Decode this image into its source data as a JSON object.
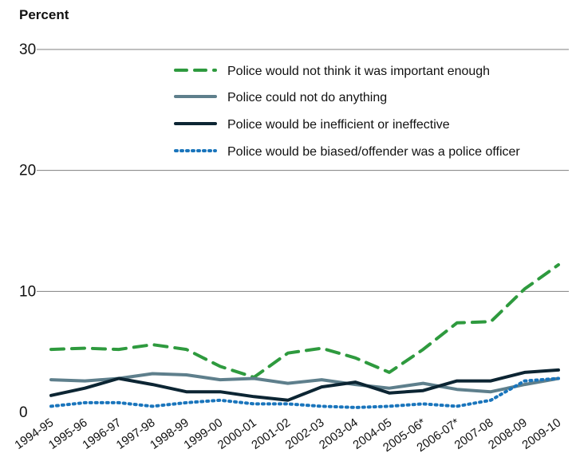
{
  "chart_data": {
    "type": "line",
    "ylabel": "Percent",
    "ylim": [
      0,
      30
    ],
    "yticks": [
      0,
      10,
      20,
      30
    ],
    "grid": "horizontal",
    "legend_position": "top-right",
    "categories": [
      "1994-95",
      "1995-96",
      "1996-97",
      "1997-98",
      "1998-99",
      "1999-00",
      "2000-01",
      "2001-02",
      "2002-03",
      "2003-04",
      "2004-05",
      "2005-06*",
      "2006-07*",
      "2007-08",
      "2008-09",
      "2009-10"
    ],
    "series": [
      {
        "name": "Police would not think it was important enough",
        "color": "#2e9a3e",
        "style": "dashed",
        "values": [
          5.2,
          5.3,
          5.2,
          5.6,
          5.2,
          3.8,
          2.9,
          4.9,
          5.3,
          4.5,
          3.3,
          5.2,
          7.4,
          7.5,
          10.2,
          12.2
        ]
      },
      {
        "name": "Police could not do anything",
        "color": "#5e7f8c",
        "style": "solid",
        "values": [
          2.7,
          2.6,
          2.8,
          3.2,
          3.1,
          2.7,
          2.8,
          2.4,
          2.7,
          2.3,
          2.0,
          2.4,
          1.9,
          1.7,
          2.3,
          2.8
        ]
      },
      {
        "name": "Police would be inefficient or ineffective",
        "color": "#0c2533",
        "style": "solid",
        "values": [
          1.4,
          2.0,
          2.8,
          2.3,
          1.7,
          1.7,
          1.3,
          1.0,
          2.1,
          2.5,
          1.6,
          1.8,
          2.6,
          2.6,
          3.3,
          3.5
        ]
      },
      {
        "name": "Police would be biased/offender was a police officer",
        "color": "#1a75bc",
        "style": "dotted",
        "values": [
          0.5,
          0.8,
          0.8,
          0.5,
          0.8,
          1.0,
          0.7,
          0.7,
          0.5,
          0.4,
          0.5,
          0.7,
          0.5,
          1.0,
          2.6,
          2.8
        ]
      }
    ]
  }
}
